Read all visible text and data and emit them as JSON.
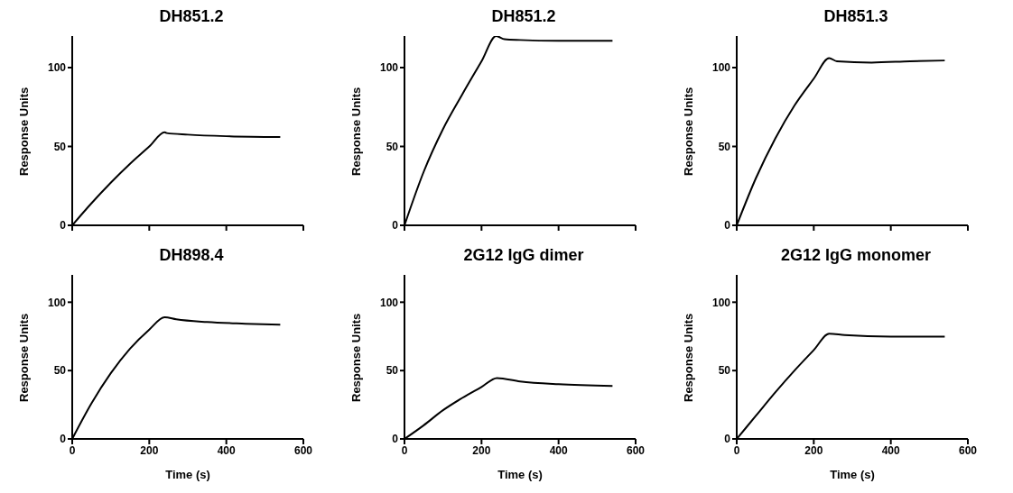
{
  "chart_data": [
    {
      "type": "line",
      "title": "DH851.2",
      "ylabel": "Response Units",
      "x": [
        0,
        50,
        100,
        150,
        200,
        240,
        245,
        300,
        400,
        540
      ],
      "series": [
        {
          "color": "#000000",
          "values": [
            0,
            14,
            27,
            39,
            50,
            59,
            58.5,
            57.5,
            56.5,
            56
          ]
        }
      ],
      "xlim": [
        0,
        600
      ],
      "ylim": [
        0,
        120
      ],
      "xticks": [
        {
          "value": 0,
          "label": null
        },
        {
          "value": 200,
          "label": null
        },
        {
          "value": 400,
          "label": null
        },
        {
          "value": 600,
          "label": null
        }
      ],
      "yticks": [
        0,
        50,
        100
      ],
      "tick_labels": "y"
    },
    {
      "type": "line",
      "title": "DH851.2",
      "ylabel": "Response Units",
      "x": [
        0,
        50,
        100,
        150,
        200,
        238,
        260,
        300,
        400,
        540
      ],
      "series": [
        {
          "color": "#000000",
          "values": [
            0,
            34,
            61,
            83,
            104,
            120,
            118,
            117.5,
            117,
            117
          ]
        }
      ],
      "xlim": [
        0,
        600
      ],
      "ylim": [
        0,
        120
      ],
      "xticks": [
        {
          "value": 0,
          "label": null
        },
        {
          "value": 200,
          "label": null
        },
        {
          "value": 400,
          "label": null
        },
        {
          "value": 600,
          "label": null
        }
      ],
      "yticks": [
        0,
        50,
        100
      ],
      "tick_labels": "y"
    },
    {
      "type": "line",
      "title": "DH851.3",
      "ylabel": "Response Units",
      "x": [
        0,
        50,
        100,
        150,
        200,
        240,
        260,
        350,
        450,
        540
      ],
      "series": [
        {
          "color": "#000000",
          "values": [
            0,
            30,
            55,
            76,
            93,
            106,
            104,
            103.2,
            104,
            104.5
          ]
        }
      ],
      "xlim": [
        0,
        600
      ],
      "ylim": [
        0,
        120
      ],
      "xticks": [
        {
          "value": 0,
          "label": null
        },
        {
          "value": 200,
          "label": null
        },
        {
          "value": 400,
          "label": null
        },
        {
          "value": 600,
          "label": null
        }
      ],
      "yticks": [
        0,
        50,
        100
      ],
      "tick_labels": "y"
    },
    {
      "type": "line",
      "title": "DH898.4",
      "xlabel": "Time (s)",
      "ylabel": "Response Units",
      "x": [
        0,
        50,
        100,
        150,
        200,
        240,
        270,
        350,
        450,
        540
      ],
      "series": [
        {
          "color": "#000000",
          "values": [
            0,
            26,
            48,
            66,
            80,
            89,
            87.5,
            85.5,
            84.3,
            83.5
          ]
        }
      ],
      "xlim": [
        0,
        600
      ],
      "ylim": [
        0,
        120
      ],
      "xticks": [
        0,
        200,
        400,
        600
      ],
      "yticks": [
        0,
        50,
        100
      ]
    },
    {
      "type": "line",
      "title": "2G12 IgG dimer",
      "xlabel": "Time (s)",
      "ylabel": "Response Units",
      "x": [
        0,
        50,
        100,
        150,
        200,
        240,
        300,
        400,
        540
      ],
      "series": [
        {
          "color": "#000000",
          "values": [
            0,
            10,
            21,
            30,
            38,
            44.5,
            42,
            40,
            38.8
          ]
        }
      ],
      "xlim": [
        0,
        600
      ],
      "ylim": [
        0,
        120
      ],
      "xticks": [
        0,
        200,
        400,
        600
      ],
      "yticks": [
        0,
        50,
        100
      ]
    },
    {
      "type": "line",
      "title": "2G12 IgG monomer",
      "xlabel": "Time (s)",
      "ylabel": "Response Units",
      "x": [
        0,
        50,
        100,
        150,
        200,
        240,
        280,
        400,
        540
      ],
      "series": [
        {
          "color": "#000000",
          "values": [
            0,
            17,
            34,
            50,
            65,
            77,
            76,
            74.8,
            74.8
          ]
        }
      ],
      "xlim": [
        0,
        600
      ],
      "ylim": [
        0,
        120
      ],
      "xticks": [
        0,
        200,
        400,
        600
      ],
      "yticks": [
        0,
        50,
        100
      ]
    }
  ]
}
